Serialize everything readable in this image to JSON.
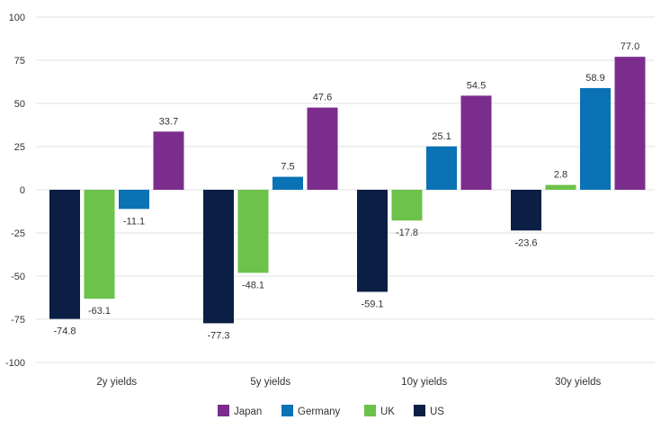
{
  "chart_data": {
    "type": "bar",
    "title": "",
    "xlabel": "",
    "ylabel": "",
    "ylim": [
      -100,
      100
    ],
    "yticks": [
      100,
      75,
      50,
      25,
      0,
      -25,
      -50,
      -75,
      -100
    ],
    "grid": true,
    "legend_placement": "bottom-center",
    "categories": [
      "2y yields",
      "5y yields",
      "10y yields",
      "30y yields"
    ],
    "series": [
      {
        "name": "US",
        "color": "#0b1f45",
        "values": [
          -74.8,
          -77.3,
          -59.1,
          -23.6
        ],
        "labels": [
          "-74.8",
          "-77.3",
          "-59.1",
          "-23.6"
        ]
      },
      {
        "name": "UK",
        "color": "#6cc24a",
        "values": [
          -63.1,
          -48.1,
          -17.8,
          2.8
        ],
        "labels": [
          "-63.1",
          "-48.1",
          "-17.8",
          "2.8"
        ]
      },
      {
        "name": "Germany",
        "color": "#0a72b5",
        "values": [
          -11.1,
          7.5,
          25.1,
          58.9
        ],
        "labels": [
          "-11.1",
          "7.5",
          "25.1",
          "58.9"
        ]
      },
      {
        "name": "Japan",
        "color": "#7b2d8e",
        "values": [
          33.7,
          47.6,
          54.5,
          77.0
        ],
        "labels": [
          "33.7",
          "47.6",
          "54.5",
          "77.0"
        ]
      }
    ],
    "legend_order": [
      "Japan",
      "Germany",
      "UK",
      "US"
    ]
  }
}
